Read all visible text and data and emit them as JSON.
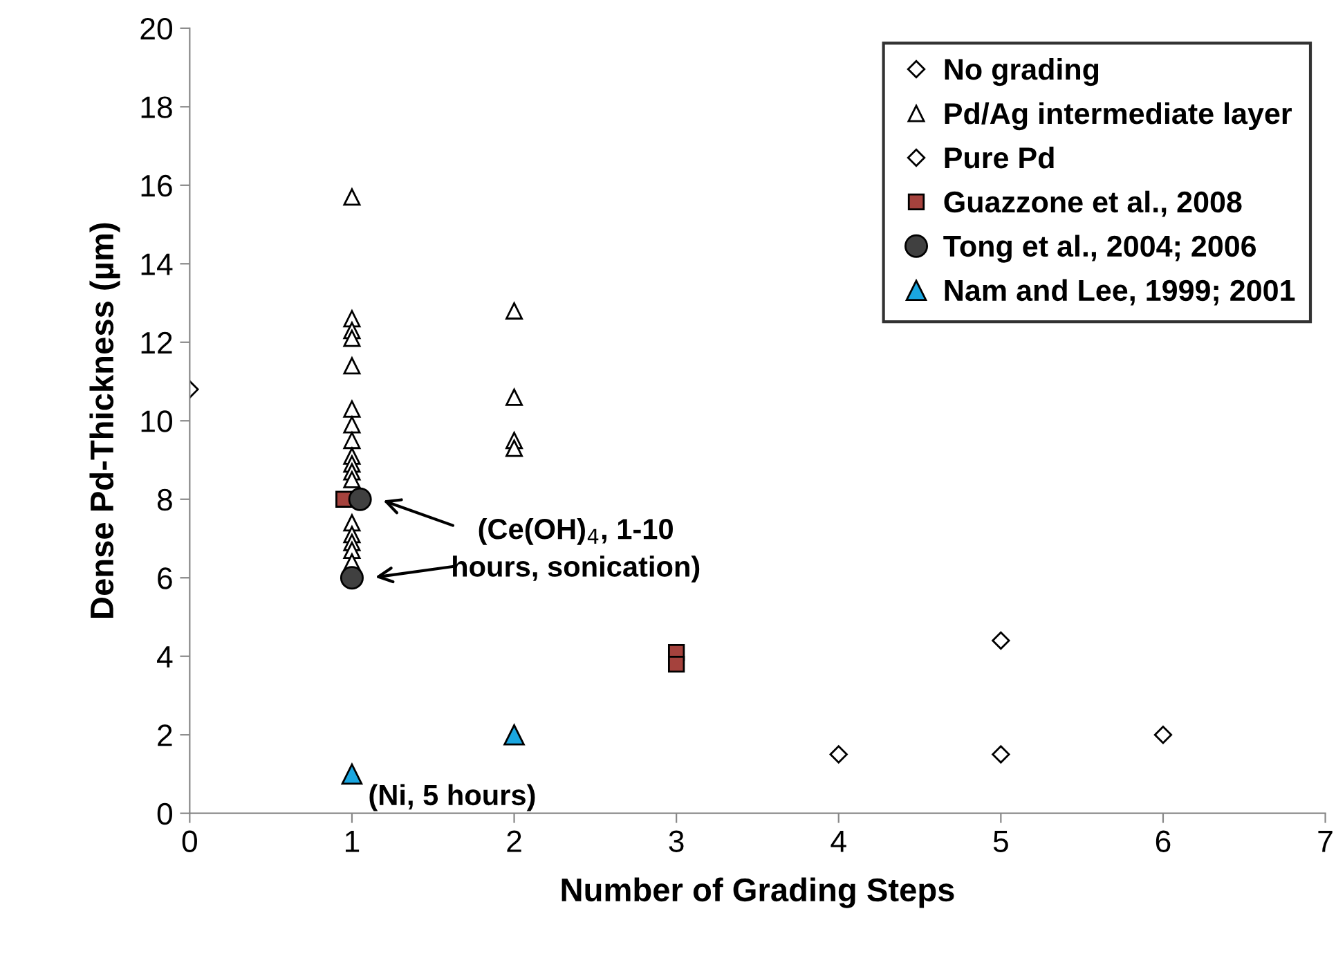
{
  "chart_data": {
    "type": "scatter",
    "xlabel": "Number of Grading Steps",
    "ylabel": "Dense Pd-Thickness (µm)",
    "xlim": [
      0,
      7
    ],
    "xticks": [
      0,
      1,
      2,
      3,
      4,
      5,
      6,
      7
    ],
    "ylim": [
      0,
      20
    ],
    "yticks": [
      0,
      2,
      4,
      6,
      8,
      10,
      12,
      14,
      16,
      18,
      20
    ],
    "grid": false,
    "legend": "top right",
    "series": [
      {
        "name": "No grading",
        "color": "#ffffff",
        "marker": "diamond",
        "x": [
          0
        ],
        "values": [
          10.8
        ]
      },
      {
        "name": "Pd/Ag intermediate layer",
        "color": "#ffffff",
        "marker": "triangle",
        "x": [
          1,
          1,
          1,
          1,
          1,
          1,
          1,
          1,
          1,
          1,
          1,
          1,
          1,
          1,
          1,
          1,
          1,
          2,
          2,
          2,
          2
        ],
        "values": [
          15.7,
          12.6,
          12.3,
          12.1,
          11.4,
          10.3,
          9.9,
          9.5,
          9.1,
          8.9,
          8.7,
          8.5,
          7.4,
          7.1,
          6.9,
          6.7,
          6.4,
          12.8,
          10.6,
          9.5,
          9.3
        ]
      },
      {
        "name": "Pure Pd",
        "color": "#ffffff",
        "marker": "diamond",
        "x": [
          4,
          5,
          5,
          6
        ],
        "values": [
          1.5,
          4.4,
          1.5,
          2.0
        ]
      },
      {
        "name": "Guazzone et al., 2008",
        "color": "#a5423d",
        "marker": "square",
        "x": [
          0.95,
          3,
          3
        ],
        "values": [
          8.0,
          4.1,
          3.8
        ]
      },
      {
        "name": "Tong et al., 2004; 2006",
        "color": "#404040",
        "marker": "circle",
        "x": [
          1.05,
          1
        ],
        "values": [
          8.0,
          6.0
        ]
      },
      {
        "name": "Nam and Lee, 1999; 2001",
        "color": "#1aa6e0",
        "marker": "triangle",
        "x": [
          1,
          2
        ],
        "values": [
          1.0,
          2.0
        ]
      }
    ],
    "annotations": [
      "(Ce(OH)$_{4}$, 1-10\nhours, sonication)",
      {
        "text": "(Ni, 5 hours)",
        "x": 1,
        "y": 1.0
      }
    ]
  }
}
